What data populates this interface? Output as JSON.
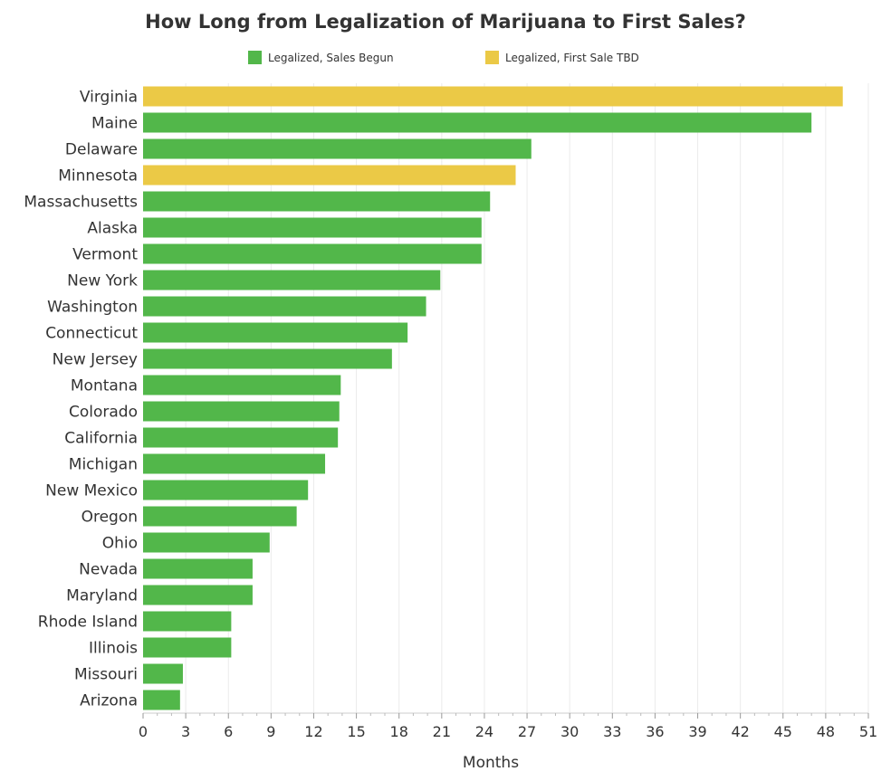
{
  "chart_data": {
    "type": "bar",
    "orientation": "horizontal",
    "title": "How Long from Legalization of Marijuana to First Sales?",
    "xlabel": "Months",
    "ylabel": "",
    "xlim": [
      0,
      51
    ],
    "xticks": [
      0,
      3,
      6,
      9,
      12,
      15,
      18,
      21,
      24,
      27,
      30,
      33,
      36,
      39,
      42,
      45,
      48,
      51
    ],
    "grid": "vertical",
    "legend_position": "top",
    "legend": [
      {
        "label": "Legalized, Sales Begun",
        "color": "#52b74a"
      },
      {
        "label": "Legalized, First Sale TBD",
        "color": "#ebc946"
      }
    ],
    "categories": [
      "Virginia",
      "Maine",
      "Delaware",
      "Minnesota",
      "Massachusetts",
      "Alaska",
      "Vermont",
      "New York",
      "Washington",
      "Connecticut",
      "New Jersey",
      "Montana",
      "Colorado",
      "California",
      "Michigan",
      "New Mexico",
      "Oregon",
      "Ohio",
      "Nevada",
      "Maryland",
      "Rhode Island",
      "Illinois",
      "Missouri",
      "Arizona"
    ],
    "values": [
      49.2,
      47.0,
      27.3,
      26.2,
      24.4,
      23.8,
      23.8,
      20.9,
      19.9,
      18.6,
      17.5,
      13.9,
      13.8,
      13.7,
      12.8,
      11.6,
      10.8,
      8.9,
      7.7,
      7.7,
      6.2,
      6.2,
      2.8,
      2.6
    ],
    "status": [
      "Legalized, First Sale TBD",
      "Legalized, Sales Begun",
      "Legalized, Sales Begun",
      "Legalized, First Sale TBD",
      "Legalized, Sales Begun",
      "Legalized, Sales Begun",
      "Legalized, Sales Begun",
      "Legalized, Sales Begun",
      "Legalized, Sales Begun",
      "Legalized, Sales Begun",
      "Legalized, Sales Begun",
      "Legalized, Sales Begun",
      "Legalized, Sales Begun",
      "Legalized, Sales Begun",
      "Legalized, Sales Begun",
      "Legalized, Sales Begun",
      "Legalized, Sales Begun",
      "Legalized, Sales Begun",
      "Legalized, Sales Begun",
      "Legalized, Sales Begun",
      "Legalized, Sales Begun",
      "Legalized, Sales Begun",
      "Legalized, Sales Begun",
      "Legalized, Sales Begun"
    ]
  }
}
